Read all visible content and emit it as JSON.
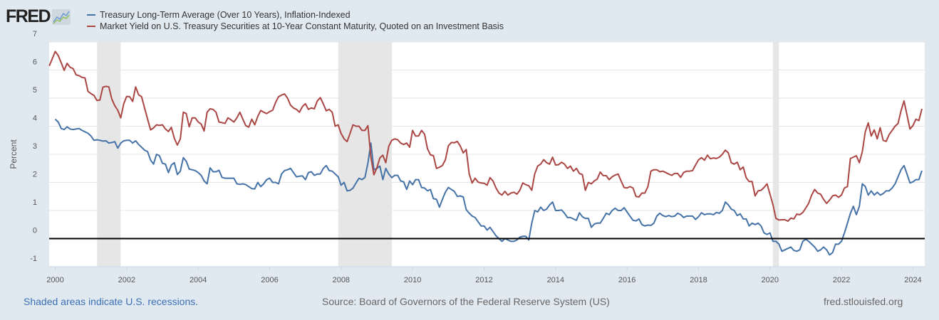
{
  "header": {
    "logo_text": "FRED"
  },
  "footer": {
    "recession_note": "Shaded areas indicate U.S. recessions.",
    "source": "Source: Board of Governors of the Federal Reserve System (US)",
    "site": "fred.stlouisfed.org"
  },
  "chart_data": {
    "type": "line",
    "title": "",
    "xlabel": "",
    "ylabel": "Percent",
    "xlim": [
      1999.83,
      2024.33
    ],
    "ylim": [
      -1,
      7
    ],
    "x_ticks": [
      "2000",
      "2002",
      "2004",
      "2006",
      "2008",
      "2010",
      "2012",
      "2014",
      "2016",
      "2018",
      "2020",
      "2022",
      "2024"
    ],
    "y_ticks": [
      "-1",
      "0",
      "1",
      "2",
      "3",
      "4",
      "5",
      "6",
      "7"
    ],
    "grid": true,
    "zero_line": true,
    "legend_position": "top-left",
    "recessions": [
      [
        2001.17,
        2001.83
      ],
      [
        2007.92,
        2009.42
      ],
      [
        2020.08,
        2020.25
      ]
    ],
    "series": [
      {
        "name": "Treasury Long-Term Average (Over 10 Years), Inflation-Indexed",
        "color": "#4572a7",
        "start": 2000.0,
        "step_months": 1,
        "values": [
          4.25,
          4.15,
          3.92,
          3.88,
          3.98,
          3.9,
          3.88,
          3.9,
          3.92,
          3.85,
          3.8,
          3.75,
          3.65,
          3.5,
          3.52,
          3.5,
          3.47,
          3.48,
          3.4,
          3.42,
          3.45,
          3.22,
          3.4,
          3.48,
          3.5,
          3.5,
          3.4,
          3.48,
          3.35,
          3.25,
          3.15,
          3.1,
          2.8,
          2.65,
          3.0,
          2.95,
          2.68,
          2.65,
          2.35,
          2.62,
          2.7,
          2.28,
          2.4,
          2.88,
          2.75,
          2.47,
          2.45,
          2.42,
          2.35,
          2.25,
          2.05,
          1.95,
          2.52,
          2.38,
          2.38,
          2.43,
          2.18,
          2.15,
          2.15,
          2.15,
          2.15,
          1.95,
          1.93,
          1.95,
          1.92,
          1.85,
          1.78,
          1.77,
          2.0,
          1.85,
          1.95,
          2.1,
          2.15,
          2.0,
          2.0,
          1.95,
          2.3,
          2.42,
          2.45,
          2.5,
          2.35,
          2.2,
          2.22,
          2.23,
          2.1,
          2.35,
          2.38,
          2.25,
          2.3,
          2.3,
          2.5,
          2.6,
          2.42,
          2.4,
          2.3,
          2.2,
          1.9,
          2.0,
          1.7,
          1.72,
          1.8,
          1.98,
          2.15,
          2.1,
          2.18,
          2.7,
          3.4,
          2.45,
          2.5,
          2.58,
          2.1,
          2.5,
          2.3,
          2.17,
          2.25,
          2.25,
          2.05,
          2.02,
          1.75,
          2.05,
          1.92,
          2.1,
          2.1,
          1.82,
          1.8,
          1.7,
          1.75,
          1.42,
          1.4,
          1.12,
          1.4,
          1.65,
          1.82,
          1.75,
          1.68,
          1.5,
          1.52,
          1.48,
          1.03,
          0.9,
          0.8,
          0.75,
          0.6,
          0.45,
          0.45,
          0.3,
          0.4,
          0.25,
          0.1,
          0.0,
          -0.1,
          0.0,
          -0.05,
          -0.1,
          -0.1,
          -0.05,
          0.05,
          0.08,
          0.08,
          -0.05,
          0.55,
          1.0,
          0.95,
          1.12,
          1.0,
          1.05,
          1.2,
          1.3,
          1.0,
          1.0,
          1.02,
          0.9,
          0.75,
          0.75,
          0.7,
          0.65,
          0.92,
          0.78,
          0.72,
          0.72,
          0.4,
          0.52,
          0.55,
          0.55,
          0.72,
          0.9,
          0.85,
          1.0,
          1.08,
          1.0,
          1.0,
          1.1,
          0.95,
          0.8,
          0.65,
          0.63,
          0.7,
          0.5,
          0.45,
          0.48,
          0.47,
          0.55,
          0.8,
          0.9,
          0.82,
          0.78,
          0.82,
          0.78,
          0.8,
          0.9,
          0.85,
          0.75,
          0.8,
          0.8,
          0.8,
          0.68,
          0.78,
          0.92,
          0.85,
          0.88,
          0.88,
          0.85,
          0.93,
          0.9,
          1.0,
          1.3,
          1.2,
          1.05,
          1.0,
          0.82,
          0.88,
          0.7,
          0.7,
          0.45,
          0.55,
          0.5,
          0.55,
          0.45,
          0.2,
          0.15,
          0.2,
          -0.1,
          -0.1,
          -0.2,
          -0.45,
          -0.4,
          -0.35,
          -0.3,
          -0.42,
          -0.45,
          -0.4,
          -0.1,
          -0.02,
          -0.1,
          -0.2,
          -0.3,
          -0.45,
          -0.4,
          -0.3,
          -0.4,
          -0.58,
          -0.5,
          -0.2,
          -0.2,
          -0.1,
          0.2,
          0.55,
          0.9,
          1.15,
          0.85,
          1.15,
          1.95,
          1.85,
          1.55,
          1.7,
          1.55,
          1.65,
          1.55,
          1.6,
          1.7,
          1.7,
          1.8,
          1.95,
          2.2,
          2.45,
          2.6,
          2.3,
          1.98,
          2.02,
          2.1,
          2.1,
          2.42
        ]
      },
      {
        "name": "Market Yield on U.S. Treasury Securities at 10-Year Constant Maturity, Quoted on an Investment Basis",
        "color": "#aa4643",
        "start": 1999.833,
        "step_months": 1,
        "values": [
          6.15,
          6.4,
          6.66,
          6.52,
          6.26,
          5.99,
          6.24,
          6.1,
          6.05,
          5.83,
          5.8,
          5.74,
          5.72,
          5.24,
          5.16,
          5.1,
          4.92,
          4.93,
          5.39,
          5.42,
          5.4,
          4.97,
          4.73,
          4.57,
          4.3,
          4.8,
          5.06,
          5.05,
          4.88,
          5.4,
          5.12,
          5.05,
          4.65,
          4.26,
          3.87,
          3.94,
          4.05,
          4.03,
          4.05,
          3.9,
          3.81,
          3.96,
          3.57,
          3.33,
          3.55,
          4.5,
          4.45,
          3.98,
          4.3,
          4.3,
          4.15,
          4.08,
          3.83,
          4.5,
          4.62,
          4.6,
          4.5,
          4.15,
          4.13,
          4.1,
          4.3,
          4.23,
          4.15,
          4.3,
          4.5,
          4.25,
          4.02,
          3.97,
          4.25,
          4.05,
          4.35,
          4.56,
          4.5,
          4.45,
          4.52,
          4.57,
          4.85,
          5.05,
          5.11,
          5.15,
          5.0,
          4.75,
          4.65,
          4.6,
          4.5,
          4.7,
          4.8,
          4.6,
          4.65,
          4.62,
          4.9,
          5.02,
          4.8,
          4.55,
          4.6,
          4.5,
          4.0,
          4.05,
          3.74,
          3.55,
          3.45,
          3.75,
          4.05,
          4.0,
          4.0,
          3.85,
          3.85,
          4.02,
          2.9,
          2.27,
          2.52,
          2.87,
          2.97,
          2.7,
          3.29,
          3.5,
          3.55,
          3.52,
          3.4,
          3.35,
          3.4,
          3.25,
          3.85,
          3.65,
          3.65,
          3.85,
          3.72,
          3.2,
          2.98,
          2.95,
          2.5,
          2.54,
          2.6,
          2.8,
          3.3,
          3.42,
          3.41,
          3.46,
          3.3,
          3.05,
          3.17,
          2.3,
          1.98,
          2.15,
          2.01,
          1.98,
          1.97,
          1.9,
          2.17,
          2.05,
          1.8,
          1.62,
          1.55,
          1.68,
          1.55,
          1.62,
          1.65,
          1.58,
          1.72,
          1.98,
          1.92,
          1.88,
          1.72,
          2.3,
          2.58,
          2.65,
          2.81,
          2.7,
          2.65,
          2.9,
          2.62,
          2.63,
          2.72,
          2.65,
          2.5,
          2.58,
          2.4,
          2.5,
          2.32,
          2.28,
          1.72,
          2.0,
          1.95,
          2.05,
          2.12,
          2.37,
          2.24,
          2.24,
          2.1,
          2.2,
          2.26,
          2.3,
          2.05,
          1.82,
          1.8,
          1.85,
          1.8,
          1.5,
          1.48,
          1.62,
          1.62,
          1.85,
          2.4,
          2.45,
          2.45,
          2.38,
          2.4,
          2.35,
          2.3,
          2.25,
          2.32,
          2.32,
          2.18,
          2.35,
          2.4,
          2.4,
          2.42,
          2.62,
          2.8,
          2.88,
          2.79,
          2.97,
          2.84,
          2.87,
          2.85,
          2.9,
          3.0,
          3.15,
          3.05,
          2.7,
          2.65,
          2.72,
          2.45,
          2.55,
          2.17,
          2.03,
          2.03,
          1.52,
          1.7,
          1.72,
          1.82,
          1.95,
          1.58,
          1.2,
          0.72,
          0.66,
          0.67,
          0.67,
          0.62,
          0.73,
          0.7,
          0.87,
          0.85,
          0.93,
          1.08,
          1.26,
          1.55,
          1.75,
          1.62,
          1.58,
          1.4,
          1.25,
          1.37,
          1.52,
          1.55,
          1.47,
          1.55,
          1.8,
          1.85,
          2.85,
          2.9,
          2.95,
          2.7,
          3.1,
          3.8,
          4.12,
          3.65,
          3.87,
          3.55,
          3.95,
          3.5,
          3.46,
          3.7,
          3.85,
          4.0,
          4.1,
          4.55,
          4.9,
          4.4,
          3.9,
          4.02,
          4.25,
          4.2,
          4.62
        ]
      }
    ]
  }
}
